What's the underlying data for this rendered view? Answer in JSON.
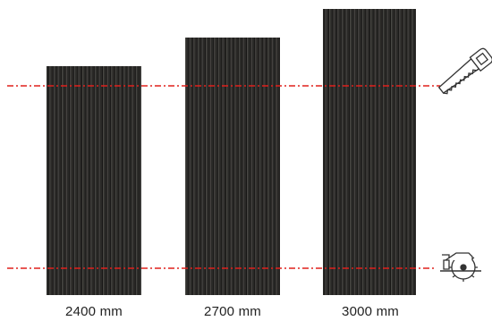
{
  "panels": [
    {
      "length_label": "2400 mm",
      "length_mm": 2400
    },
    {
      "length_label": "2700 mm",
      "length_mm": 2700
    },
    {
      "length_label": "3000 mm",
      "length_mm": 3000
    }
  ],
  "colors": {
    "panel_fill": "#2b2a28",
    "panel_slat_highlight": "#4a4845",
    "panel_slat_shadow": "#161514",
    "cut_line": "#e0201c",
    "icon_stroke": "#333333"
  },
  "icons": {
    "top_cut": "hand-saw-icon",
    "bottom_cut": "circular-saw-icon"
  }
}
